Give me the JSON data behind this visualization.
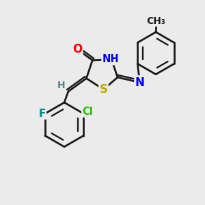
{
  "bg_color": "#ebebeb",
  "bond_color": "#1a1a1a",
  "bond_width": 2.0,
  "dbo": 0.12,
  "atom_colors": {
    "O": "#ff0000",
    "N": "#0000ee",
    "S": "#bbaa00",
    "F": "#008888",
    "Cl": "#22bb00",
    "H": "#558888",
    "C": "#1a1a1a"
  },
  "afs": 11
}
